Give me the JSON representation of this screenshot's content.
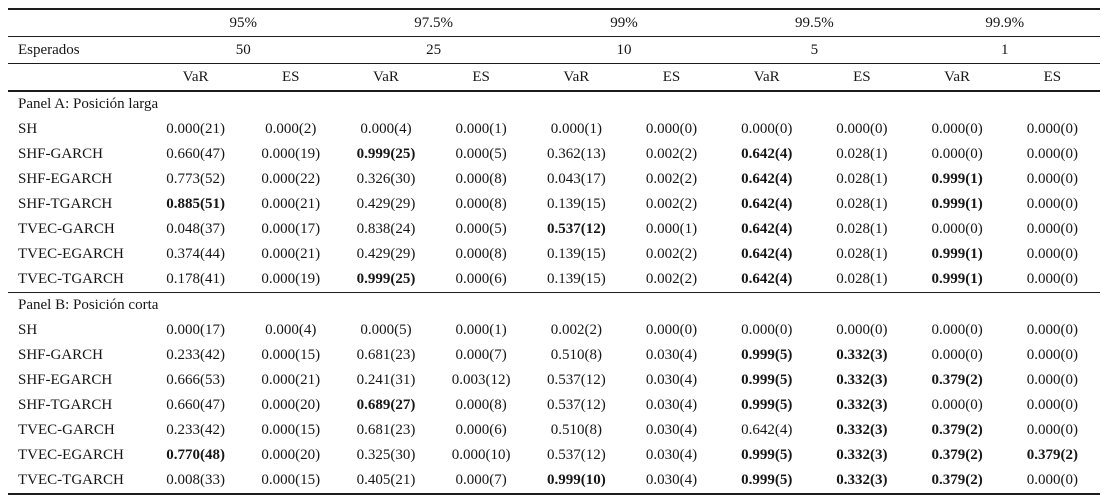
{
  "table": {
    "header": {
      "esperados_label": "Esperados",
      "groups": [
        {
          "level": "95%",
          "expected": "50"
        },
        {
          "level": "97.5%",
          "expected": "25"
        },
        {
          "level": "99%",
          "expected": "10"
        },
        {
          "level": "99.5%",
          "expected": "5"
        },
        {
          "level": "99.9%",
          "expected": "1"
        }
      ],
      "measures": [
        "VaR",
        "ES"
      ]
    },
    "panels": [
      {
        "title": "Panel A: Posición larga",
        "rows": [
          {
            "label": "SH",
            "cells": [
              "0.000(21)",
              "0.000(2)",
              "0.000(4)",
              "0.000(1)",
              "0.000(1)",
              "0.000(0)",
              "0.000(0)",
              "0.000(0)",
              "0.000(0)",
              "0.000(0)"
            ],
            "bold": []
          },
          {
            "label": "SHF-GARCH",
            "cells": [
              "0.660(47)",
              "0.000(19)",
              "0.999(25)",
              "0.000(5)",
              "0.362(13)",
              "0.002(2)",
              "0.642(4)",
              "0.028(1)",
              "0.000(0)",
              "0.000(0)"
            ],
            "bold": [
              2,
              6
            ]
          },
          {
            "label": "SHF-EGARCH",
            "cells": [
              "0.773(52)",
              "0.000(22)",
              "0.326(30)",
              "0.000(8)",
              "0.043(17)",
              "0.002(2)",
              "0.642(4)",
              "0.028(1)",
              "0.999(1)",
              "0.000(0)"
            ],
            "bold": [
              6,
              8
            ]
          },
          {
            "label": "SHF-TGARCH",
            "cells": [
              "0.885(51)",
              "0.000(21)",
              "0.429(29)",
              "0.000(8)",
              "0.139(15)",
              "0.002(2)",
              "0.642(4)",
              "0.028(1)",
              "0.999(1)",
              "0.000(0)"
            ],
            "bold": [
              0,
              6,
              8
            ]
          },
          {
            "label": "TVEC-GARCH",
            "cells": [
              "0.048(37)",
              "0.000(17)",
              "0.838(24)",
              "0.000(5)",
              "0.537(12)",
              "0.000(1)",
              "0.642(4)",
              "0.028(1)",
              "0.000(0)",
              "0.000(0)"
            ],
            "bold": [
              4,
              6
            ]
          },
          {
            "label": "TVEC-EGARCH",
            "cells": [
              "0.374(44)",
              "0.000(21)",
              "0.429(29)",
              "0.000(8)",
              "0.139(15)",
              "0.002(2)",
              "0.642(4)",
              "0.028(1)",
              "0.999(1)",
              "0.000(0)"
            ],
            "bold": [
              6,
              8
            ]
          },
          {
            "label": "TVEC-TGARCH",
            "cells": [
              "0.178(41)",
              "0.000(19)",
              "0.999(25)",
              "0.000(6)",
              "0.139(15)",
              "0.002(2)",
              "0.642(4)",
              "0.028(1)",
              "0.999(1)",
              "0.000(0)"
            ],
            "bold": [
              2,
              6,
              8
            ]
          }
        ]
      },
      {
        "title": "Panel B: Posición corta",
        "rows": [
          {
            "label": "SH",
            "cells": [
              "0.000(17)",
              "0.000(4)",
              "0.000(5)",
              "0.000(1)",
              "0.002(2)",
              "0.000(0)",
              "0.000(0)",
              "0.000(0)",
              "0.000(0)",
              "0.000(0)"
            ],
            "bold": []
          },
          {
            "label": "SHF-GARCH",
            "cells": [
              "0.233(42)",
              "0.000(15)",
              "0.681(23)",
              "0.000(7)",
              "0.510(8)",
              "0.030(4)",
              "0.999(5)",
              "0.332(3)",
              "0.000(0)",
              "0.000(0)"
            ],
            "bold": [
              6,
              7
            ]
          },
          {
            "label": "SHF-EGARCH",
            "cells": [
              "0.666(53)",
              "0.000(21)",
              "0.241(31)",
              "0.003(12)",
              "0.537(12)",
              "0.030(4)",
              "0.999(5)",
              "0.332(3)",
              "0.379(2)",
              "0.000(0)"
            ],
            "bold": [
              6,
              7,
              8
            ]
          },
          {
            "label": "SHF-TGARCH",
            "cells": [
              "0.660(47)",
              "0.000(20)",
              "0.689(27)",
              "0.000(8)",
              "0.537(12)",
              "0.030(4)",
              "0.999(5)",
              "0.332(3)",
              "0.000(0)",
              "0.000(0)"
            ],
            "bold": [
              2,
              6,
              7
            ]
          },
          {
            "label": "TVEC-GARCH",
            "cells": [
              "0.233(42)",
              "0.000(15)",
              "0.681(23)",
              "0.000(6)",
              "0.510(8)",
              "0.030(4)",
              "0.642(4)",
              "0.332(3)",
              "0.379(2)",
              "0.000(0)"
            ],
            "bold": [
              7,
              8
            ]
          },
          {
            "label": "TVEC-EGARCH",
            "cells": [
              "0.770(48)",
              "0.000(20)",
              "0.325(30)",
              "0.000(10)",
              "0.537(12)",
              "0.030(4)",
              "0.999(5)",
              "0.332(3)",
              "0.379(2)",
              "0.379(2)"
            ],
            "bold": [
              0,
              6,
              7,
              8,
              9
            ]
          },
          {
            "label": "TVEC-TGARCH",
            "cells": [
              "0.008(33)",
              "0.000(15)",
              "0.405(21)",
              "0.000(7)",
              "0.999(10)",
              "0.030(4)",
              "0.999(5)",
              "0.332(3)",
              "0.379(2)",
              "0.000(0)"
            ],
            "bold": [
              4,
              6,
              7,
              8
            ]
          }
        ]
      }
    ]
  }
}
